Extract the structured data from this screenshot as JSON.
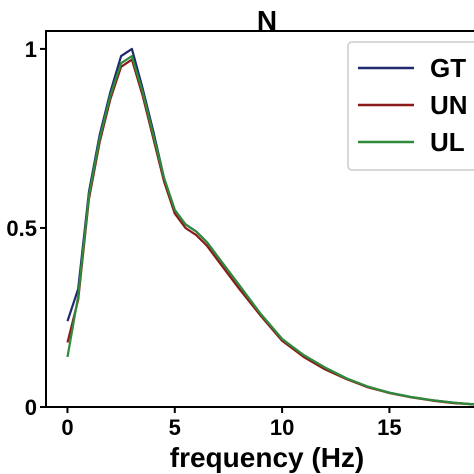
{
  "chart_data": {
    "type": "line",
    "title": "N",
    "xlabel": "frequency (Hz)",
    "ylabel": "",
    "xlim": [
      -1,
      19.5
    ],
    "ylim": [
      0,
      1.05
    ],
    "x_ticks": [
      0,
      5,
      10,
      15
    ],
    "x_tick_labels": [
      "0",
      "5",
      "10",
      "15"
    ],
    "y_ticks": [
      0,
      0.5,
      1
    ],
    "y_tick_labels": [
      "0",
      "0.5",
      "1"
    ],
    "grid": false,
    "legend_position": "top-right",
    "x": [
      0,
      0.5,
      1,
      1.5,
      2,
      2.5,
      3,
      3.5,
      4,
      4.5,
      5,
      5.5,
      6,
      6.5,
      7,
      8,
      9,
      10,
      11,
      12,
      13,
      14,
      15,
      16,
      17,
      18,
      19,
      19.5
    ],
    "series": [
      {
        "name": "GT",
        "color": "#1f2a6e",
        "values": [
          0.24,
          0.33,
          0.6,
          0.76,
          0.88,
          0.98,
          1.0,
          0.89,
          0.77,
          0.64,
          0.55,
          0.51,
          0.49,
          0.46,
          0.42,
          0.34,
          0.26,
          0.19,
          0.145,
          0.11,
          0.08,
          0.056,
          0.04,
          0.028,
          0.019,
          0.012,
          0.007,
          0.005
        ]
      },
      {
        "name": "UN",
        "color": "#8b1a1a",
        "values": [
          0.18,
          0.3,
          0.58,
          0.74,
          0.86,
          0.95,
          0.97,
          0.87,
          0.75,
          0.63,
          0.54,
          0.5,
          0.48,
          0.45,
          0.41,
          0.33,
          0.255,
          0.185,
          0.14,
          0.105,
          0.078,
          0.055,
          0.039,
          0.027,
          0.018,
          0.011,
          0.007,
          0.005
        ]
      },
      {
        "name": "UL",
        "color": "#2e8b3a",
        "values": [
          0.14,
          0.31,
          0.59,
          0.75,
          0.87,
          0.96,
          0.98,
          0.88,
          0.76,
          0.64,
          0.55,
          0.51,
          0.49,
          0.46,
          0.42,
          0.34,
          0.26,
          0.19,
          0.145,
          0.11,
          0.08,
          0.057,
          0.04,
          0.028,
          0.019,
          0.012,
          0.007,
          0.005
        ]
      }
    ]
  }
}
